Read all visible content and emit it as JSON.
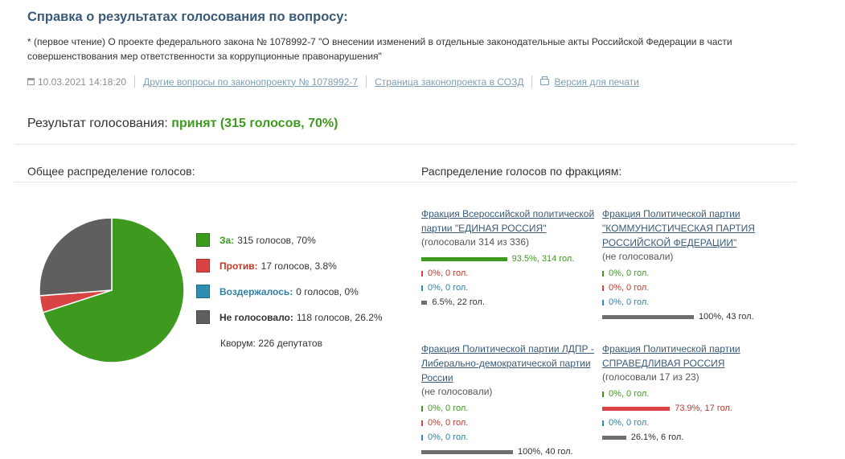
{
  "title": "Справка о результатах голосования по вопросу:",
  "question": "* (первое чтение) О проекте федерального закона № 1078992-7 \"О внесении изменений в отдельные законодательные акты Российской Федерации в части совершенствования мер ответственности за коррупционные правонарушения\"",
  "meta": {
    "datetime": "10.03.2021 14:18:20",
    "other_questions": "Другие вопросы по законопроекту № 1078992-7",
    "sozd_page": "Страница законопроекта в СОЗД",
    "print_version": "Версия для печати"
  },
  "result": {
    "label": "Результат голосования:",
    "value": "принят (315 голосов, 70%)"
  },
  "general": {
    "heading": "Общее распределение голосов:",
    "legend": [
      {
        "label": "За:",
        "value": "315 голосов, 70%",
        "color": "#3e9a1f",
        "share": 70.0
      },
      {
        "label": "Против:",
        "value": "17 голосов, 3.8%",
        "color": "#d94343",
        "share": 3.8
      },
      {
        "label": "Воздержалось:",
        "value": "0 голосов, 0%",
        "color": "#2f8fb0",
        "share": 0.0
      },
      {
        "label": "Не голосовало:",
        "value": "118 голосов, 26.2%",
        "color": "#5f5f5f",
        "share": 26.2
      }
    ],
    "quorum": "Кворум: 226 депутатов"
  },
  "chart_data": {
    "type": "pie",
    "categories": [
      "За",
      "Против",
      "Воздержалось",
      "Не голосовало"
    ],
    "values": [
      315,
      17,
      0,
      118
    ],
    "percent": [
      70,
      3.8,
      0,
      26.2
    ],
    "colors": [
      "#3e9a1f",
      "#d94343",
      "#2f8fb0",
      "#5f5f5f"
    ]
  },
  "factions_heading": "Распределение голосов по фракциям:",
  "factions": [
    {
      "name": "Фракция Всероссийской политической партии \"ЕДИНАЯ РОССИЯ\"",
      "voted": "(голосовали 314 из 336)",
      "rows": [
        {
          "kind": "for",
          "share": 93.5,
          "label": "93.5%, 314 гол."
        },
        {
          "kind": "against",
          "share": 0,
          "label": "0%, 0 гол."
        },
        {
          "kind": "abstain",
          "share": 0,
          "label": "0%, 0 гол."
        },
        {
          "kind": "novote",
          "share": 6.5,
          "label": "6.5%, 22 гол."
        }
      ]
    },
    {
      "name": "Фракция Политической партии \"КОММУНИСТИЧЕСКАЯ ПАРТИЯ РОССИЙСКОЙ ФЕДЕРАЦИИ\"",
      "voted": "(не голосовали)",
      "rows": [
        {
          "kind": "for",
          "share": 0,
          "label": "0%, 0 гол."
        },
        {
          "kind": "against",
          "share": 0,
          "label": "0%, 0 гол."
        },
        {
          "kind": "abstain",
          "share": 0,
          "label": "0%, 0 гол."
        },
        {
          "kind": "novote",
          "share": 100,
          "label": "100%, 43 гол."
        }
      ]
    },
    {
      "name": "Фракция Политической партии ЛДПР - Либерально-демократической партии России",
      "voted": "(не голосовали)",
      "rows": [
        {
          "kind": "for",
          "share": 0,
          "label": "0%, 0 гол."
        },
        {
          "kind": "against",
          "share": 0,
          "label": "0%, 0 гол."
        },
        {
          "kind": "abstain",
          "share": 0,
          "label": "0%, 0 гол."
        },
        {
          "kind": "novote",
          "share": 100,
          "label": "100%, 40 гол."
        }
      ]
    },
    {
      "name": "Фракция Политической партии СПРАВЕДЛИВАЯ РОССИЯ",
      "voted": "(голосовали 17 из 23)",
      "rows": [
        {
          "kind": "for",
          "share": 0,
          "label": "0%, 0 гол."
        },
        {
          "kind": "against",
          "share": 73.9,
          "label": "73.9%, 17 гол."
        },
        {
          "kind": "abstain",
          "share": 0,
          "label": "0%, 0 гол."
        },
        {
          "kind": "novote",
          "share": 26.1,
          "label": "26.1%, 6 гол."
        }
      ]
    }
  ]
}
